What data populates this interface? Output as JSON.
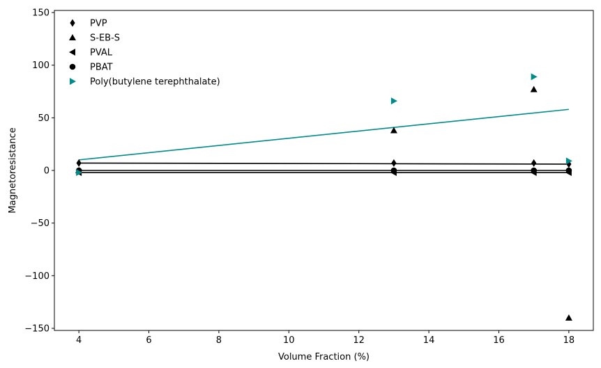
{
  "chart_data": {
    "type": "scatter",
    "xlabel": "Volume Fraction (%)",
    "ylabel": "Magnetoresistance",
    "xlim": [
      3.3,
      18.7
    ],
    "ylim": [
      -152,
      152
    ],
    "xticks": [
      4,
      6,
      8,
      10,
      12,
      14,
      16,
      18
    ],
    "yticks": [
      -150,
      -100,
      -50,
      0,
      50,
      100,
      150
    ],
    "xtick_labels": [
      "4",
      "6",
      "8",
      "10",
      "12",
      "14",
      "16",
      "18"
    ],
    "ytick_labels": [
      "−150",
      "−100",
      "−50",
      "0",
      "50",
      "100",
      "150"
    ],
    "grid": false,
    "legend_position": "top-left",
    "series": [
      {
        "name": "PVP",
        "marker": "diamond",
        "color": "#000000",
        "x": [
          4,
          13,
          17,
          18
        ],
        "y": [
          7,
          7,
          7,
          6
        ],
        "fit": {
          "x": [
            4,
            18
          ],
          "y": [
            7,
            6
          ]
        }
      },
      {
        "name": "S-EB-S",
        "marker": "triangle-up",
        "color": "#000000",
        "x": [
          4,
          13,
          17,
          18
        ],
        "y": [
          0,
          38,
          77,
          -140
        ],
        "fit": null
      },
      {
        "name": "PVAL",
        "marker": "triangle-left",
        "color": "#000000",
        "x": [
          4,
          13,
          17,
          18
        ],
        "y": [
          -2,
          -2,
          -2,
          -2
        ],
        "fit": {
          "x": [
            4,
            18
          ],
          "y": [
            -2,
            -2
          ]
        }
      },
      {
        "name": "PBAT",
        "marker": "circle",
        "color": "#000000",
        "x": [
          4,
          13,
          17,
          18
        ],
        "y": [
          0,
          0,
          0,
          0
        ],
        "fit": {
          "x": [
            4,
            18
          ],
          "y": [
            0,
            0
          ]
        }
      },
      {
        "name": "Poly(butylene terephthalate)",
        "marker": "triangle-right",
        "color": "#008b8b",
        "x": [
          4,
          13,
          17,
          18
        ],
        "y": [
          -2,
          66,
          89,
          9
        ],
        "fit": {
          "x": [
            4,
            18
          ],
          "y": [
            10,
            58
          ]
        }
      }
    ]
  }
}
